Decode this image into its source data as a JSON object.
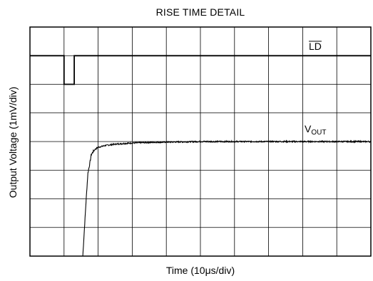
{
  "chart_data": {
    "type": "line",
    "title": "RISE TIME DETAIL",
    "xlabel": "Time (10μs/div)",
    "ylabel": "Output Voltage (1mV/div)",
    "x_divisions": 10,
    "y_divisions": 8,
    "grid": true,
    "series": [
      {
        "name": "LD",
        "name_overline": true,
        "label_main": "LD",
        "x": [
          0.0,
          1.0,
          1.0,
          1.3,
          1.3,
          10.0
        ],
        "y": [
          7.0,
          7.0,
          6.0,
          6.0,
          7.0,
          7.0
        ]
      },
      {
        "name": "VOUT",
        "label_main": "V",
        "label_sub": "OUT",
        "x": [
          1.55,
          1.6,
          1.65,
          1.7,
          1.75,
          1.8,
          1.9,
          2.0,
          2.2,
          2.5,
          3.0,
          3.5,
          4.0,
          5.0,
          6.0,
          7.0,
          8.0,
          9.0,
          10.0
        ],
        "y": [
          0.0,
          1.0,
          2.0,
          2.9,
          3.2,
          3.55,
          3.72,
          3.8,
          3.86,
          3.91,
          3.95,
          3.97,
          3.98,
          4.0,
          4.0,
          4.0,
          4.0,
          4.0,
          4.0
        ]
      }
    ]
  }
}
